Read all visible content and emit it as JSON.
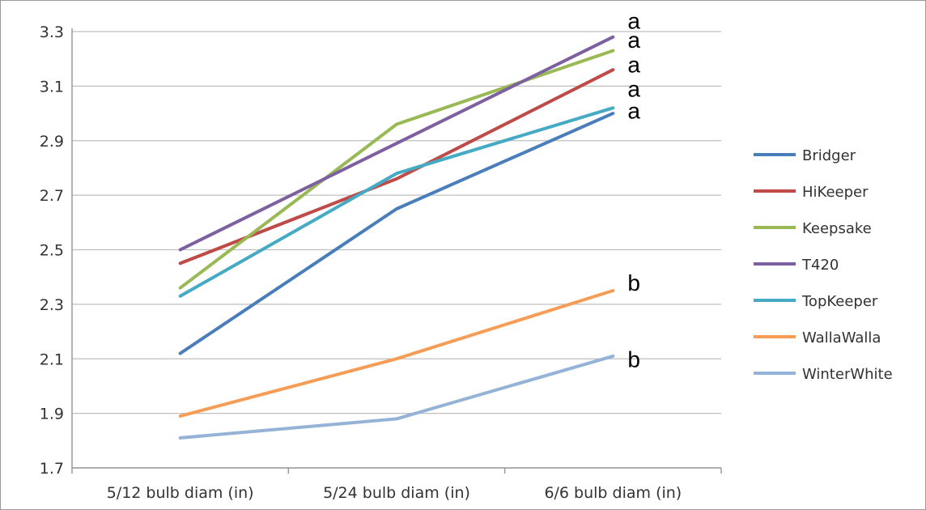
{
  "chart_data": {
    "type": "line",
    "categories": [
      "5/12 bulb diam (in)",
      "5/24 bulb diam (in)",
      "6/6 bulb diam (in)"
    ],
    "ylim": [
      1.7,
      3.3
    ],
    "yticks": [
      "1.7",
      "1.9",
      "2.1",
      "2.3",
      "2.5",
      "2.7",
      "2.9",
      "3.1",
      "3.3"
    ],
    "grid": true,
    "legend_position": "right",
    "series": [
      {
        "name": "Bridger",
        "color": "#4a7ebb",
        "values": [
          2.12,
          2.65,
          3.0
        ]
      },
      {
        "name": "HiKeeper",
        "color": "#be4b48",
        "values": [
          2.45,
          2.76,
          3.16
        ]
      },
      {
        "name": "Keepsake",
        "color": "#98b954",
        "values": [
          2.36,
          2.96,
          3.23
        ]
      },
      {
        "name": "T420",
        "color": "#7d60a0",
        "values": [
          2.5,
          2.89,
          3.28
        ]
      },
      {
        "name": "TopKeeper",
        "color": "#46aac5",
        "values": [
          2.33,
          2.78,
          3.02
        ]
      },
      {
        "name": "WallaWalla",
        "color": "#f59d56",
        "values": [
          1.89,
          2.1,
          2.35
        ]
      },
      {
        "name": "WinterWhite",
        "color": "#95b3d7",
        "values": [
          1.81,
          1.88,
          2.11
        ]
      }
    ],
    "annotations": [
      {
        "text": "a",
        "value": 3.34
      },
      {
        "text": "a",
        "value": 3.27
      },
      {
        "text": "a",
        "value": 3.18
      },
      {
        "text": "a",
        "value": 3.09
      },
      {
        "text": "a",
        "value": 3.01
      },
      {
        "text": "b",
        "value": 2.38
      },
      {
        "text": "b",
        "value": 2.1
      }
    ]
  }
}
